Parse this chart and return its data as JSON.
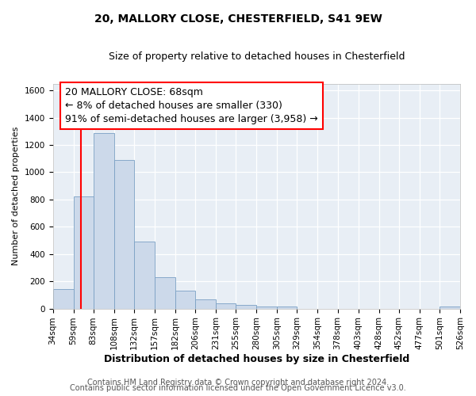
{
  "title1": "20, MALLORY CLOSE, CHESTERFIELD, S41 9EW",
  "title2": "Size of property relative to detached houses in Chesterfield",
  "xlabel": "Distribution of detached houses by size in Chesterfield",
  "ylabel": "Number of detached properties",
  "footer1": "Contains HM Land Registry data © Crown copyright and database right 2024.",
  "footer2": "Contains public sector information licensed under the Open Government Licence v3.0.",
  "annotation_line1": "20 MALLORY CLOSE: 68sqm",
  "annotation_line2": "← 8% of detached houses are smaller (330)",
  "annotation_line3": "91% of semi-detached houses are larger (3,958) →",
  "bar_color": "#ccd9ea",
  "bar_edge_color": "#7aa0c4",
  "red_line_x": 68,
  "bin_edges": [
    34,
    59,
    83,
    108,
    132,
    157,
    182,
    206,
    231,
    255,
    280,
    305,
    329,
    354,
    378,
    403,
    428,
    452,
    477,
    501,
    526
  ],
  "bar_heights": [
    140,
    820,
    1290,
    1090,
    490,
    230,
    130,
    65,
    38,
    27,
    13,
    14,
    0,
    0,
    0,
    0,
    0,
    0,
    0,
    14
  ],
  "ylim": [
    0,
    1650
  ],
  "yticks": [
    0,
    200,
    400,
    600,
    800,
    1000,
    1200,
    1400,
    1600
  ],
  "background_color": "#e8eef5",
  "grid_color": "#ffffff",
  "title_fontsize": 10,
  "subtitle_fontsize": 9,
  "ylabel_fontsize": 8,
  "xlabel_fontsize": 9,
  "tick_fontsize": 7.5,
  "footer_fontsize": 7,
  "annotation_fontsize": 9
}
